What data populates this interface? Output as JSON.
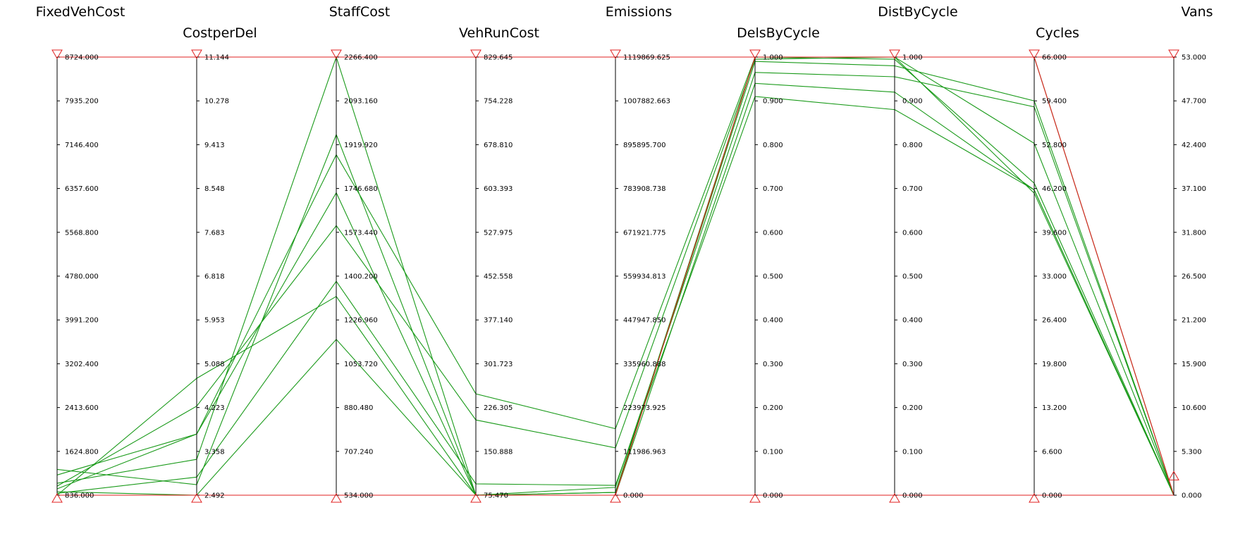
{
  "chart_data": {
    "type": "parallel-coordinates",
    "axes": [
      {
        "name": "FixedVehCost",
        "range": [
          836.0,
          8724.0
        ],
        "ticks": [
          "836.000",
          "1624.800",
          "2413.600",
          "3202.400",
          "3991.200",
          "4780.000",
          "5568.800",
          "6357.600",
          "7146.400",
          "7935.200",
          "8724.000"
        ]
      },
      {
        "name": "CostperDel",
        "range": [
          2.492,
          11.144
        ],
        "ticks": [
          "2.492",
          "3.358",
          "4.223",
          "5.088",
          "5.953",
          "6.818",
          "7.683",
          "8.548",
          "9.413",
          "10.278",
          "11.144"
        ]
      },
      {
        "name": "StaffCost",
        "range": [
          534.0,
          2266.4
        ],
        "ticks": [
          "534.000",
          "707.240",
          "880.480",
          "1053.720",
          "1226.960",
          "1400.200",
          "1573.440",
          "1746.680",
          "1919.920",
          "2093.160",
          "2266.400"
        ]
      },
      {
        "name": "VehRunCost",
        "range": [
          75.47,
          829.645
        ],
        "ticks": [
          "75.470",
          "150.888",
          "226.305",
          "301.723",
          "377.140",
          "452.558",
          "527.975",
          "603.393",
          "678.810",
          "754.228",
          "829.645"
        ]
      },
      {
        "name": "Emissions",
        "range": [
          0.0,
          1119869.625
        ],
        "ticks": [
          "0.000",
          "111986.963",
          "223973.925",
          "335960.888",
          "447947.850",
          "559934.813",
          "671921.775",
          "783908.738",
          "895895.700",
          "1007882.663",
          "1119869.625"
        ]
      },
      {
        "name": "DelsByCycle",
        "range": [
          0.0,
          1.0
        ],
        "ticks": [
          "0.000",
          "0.100",
          "0.200",
          "0.300",
          "0.400",
          "0.500",
          "0.600",
          "0.700",
          "0.800",
          "0.900",
          "1.000"
        ]
      },
      {
        "name": "DistByCycle",
        "range": [
          0.0,
          1.0
        ],
        "ticks": [
          "0.000",
          "0.100",
          "0.200",
          "0.300",
          "0.400",
          "0.500",
          "0.600",
          "0.700",
          "0.800",
          "0.900",
          "1.000"
        ]
      },
      {
        "name": "Cycles",
        "range": [
          0.0,
          66.0
        ],
        "ticks": [
          "0.000",
          "6.600",
          "13.200",
          "19.800",
          "26.400",
          "33.000",
          "39.600",
          "46.200",
          "52.800",
          "59.400",
          "66.000"
        ]
      },
      {
        "name": "Vans",
        "range": [
          0.0,
          53.0
        ],
        "ticks": [
          "0.000",
          "5.300",
          "10.600",
          "15.900",
          "21.200",
          "26.500",
          "31.800",
          "37.100",
          "42.400",
          "47.700",
          "53.000"
        ]
      }
    ],
    "filters": {
      "upper": [
        8724.0,
        11.144,
        2266.4,
        829.645,
        1119869.625,
        1.0,
        1.0,
        66.0,
        53.0
      ],
      "lower": [
        836.0,
        2.492,
        534.0,
        75.47,
        0.0,
        0.0,
        0.0,
        0.0,
        2.7
      ]
    },
    "series": [
      {
        "status": "included",
        "values": [
          836,
          4.8,
          1320,
          75.47,
          20000,
          0.965,
          0.955,
          58.5,
          0
        ]
      },
      {
        "status": "included",
        "values": [
          1050,
          3.2,
          2266.4,
          75.47,
          7000,
          1.0,
          1.0,
          53.0,
          0
        ]
      },
      {
        "status": "included",
        "values": [
          1200,
          3.7,
          1730,
          75.47,
          7000,
          0.99,
          0.98,
          59.4,
          0
        ]
      },
      {
        "status": "included",
        "values": [
          950,
          3.7,
          1880,
          250,
          170000,
          1.0,
          0.995,
          47.0,
          0
        ]
      },
      {
        "status": "included",
        "values": [
          900,
          2.492,
          1150,
          75.47,
          0,
          1.0,
          1.0,
          66.0,
          0
        ]
      },
      {
        "status": "included",
        "values": [
          1000,
          4.25,
          1600,
          205,
          121000,
          0.995,
          1.0,
          45.5,
          0
        ]
      },
      {
        "status": "included",
        "values": [
          1300,
          2.7,
          1960,
          75.47,
          0,
          0.94,
          0.92,
          46.0,
          0
        ]
      },
      {
        "status": "included",
        "values": [
          870,
          2.85,
          1380,
          95,
          25000,
          0.91,
          0.88,
          46.0,
          0
        ]
      },
      {
        "status": "excluded",
        "values": [
          836,
          2.492,
          534,
          75.47,
          0,
          1.0,
          1.0,
          66.0,
          0
        ]
      }
    ],
    "colors": {
      "included": "#1a9a1a",
      "excluded": "#e02020",
      "axis": "#000000",
      "filter": "#e02020"
    },
    "grid": false
  }
}
